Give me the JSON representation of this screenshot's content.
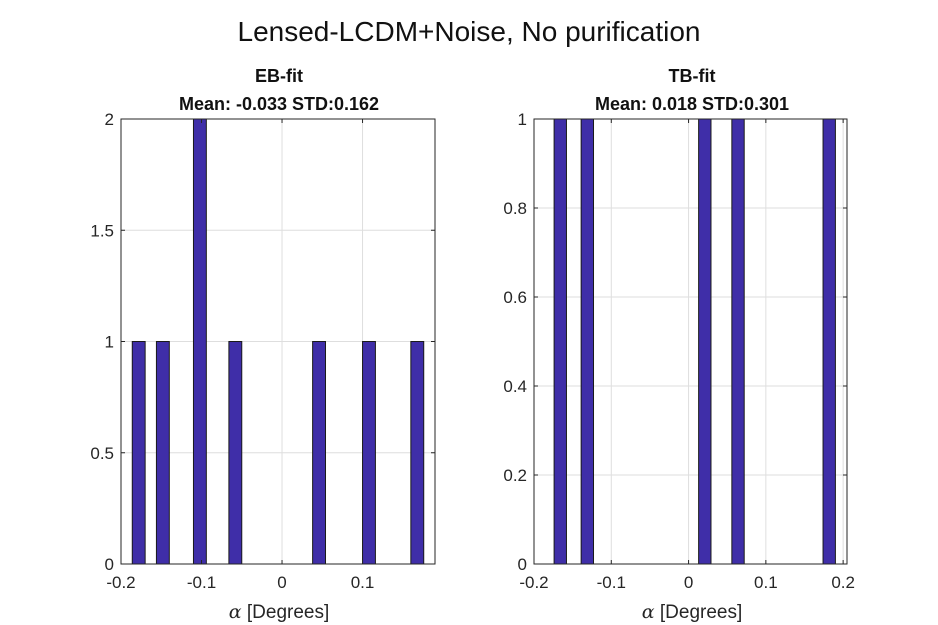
{
  "figure": {
    "suptitle": "Lensed-LCDM+Noise, No purification"
  },
  "colors": {
    "bar_fill": "#3f2ea8",
    "bar_edge": "#1a1a1a",
    "grid": "#dedede",
    "axis": "#262626"
  },
  "chart_data": [
    {
      "type": "bar",
      "name": "eb",
      "title": "EB-fit",
      "subtitle": "Mean: -0.033 STD:0.162",
      "xlabel_symbol": "α",
      "xlabel_text": " [Degrees]",
      "ylabel": "",
      "xlim": [
        -0.2,
        0.19
      ],
      "ylim": [
        0,
        2
      ],
      "bar_width": 0.016,
      "xticks": [
        -0.2,
        -0.1,
        0,
        0.1
      ],
      "xtick_labels": [
        "-0.2",
        "-0.1",
        "0",
        "0.1"
      ],
      "yticks": [
        0,
        0.5,
        1,
        1.5,
        2
      ],
      "ytick_labels": [
        "0",
        "0.5",
        "1",
        "1.5",
        "2"
      ],
      "grid": true,
      "x": [
        -0.178,
        -0.148,
        -0.102,
        -0.058,
        0.046,
        0.108,
        0.168
      ],
      "values": [
        1,
        1,
        2,
        1,
        1,
        1,
        1
      ]
    },
    {
      "type": "bar",
      "name": "tb",
      "title": "TB-fit",
      "subtitle": "Mean: 0.018 STD:0.301",
      "xlabel_symbol": "α",
      "xlabel_text": " [Degrees]",
      "ylabel": "",
      "xlim": [
        -0.2,
        0.205
      ],
      "ylim": [
        0,
        1
      ],
      "bar_width": 0.016,
      "xticks": [
        -0.2,
        -0.1,
        0,
        0.1,
        0.2
      ],
      "xtick_labels": [
        "-0.2",
        "-0.1",
        "0",
        "0.1",
        "0.2"
      ],
      "yticks": [
        0,
        0.2,
        0.4,
        0.6,
        0.8,
        1
      ],
      "ytick_labels": [
        "0",
        "0.2",
        "0.4",
        "0.6",
        "0.8",
        "1"
      ],
      "grid": true,
      "x": [
        -0.166,
        -0.131,
        0.021,
        0.064,
        0.182
      ],
      "values": [
        1,
        1,
        1,
        1,
        1
      ]
    }
  ]
}
